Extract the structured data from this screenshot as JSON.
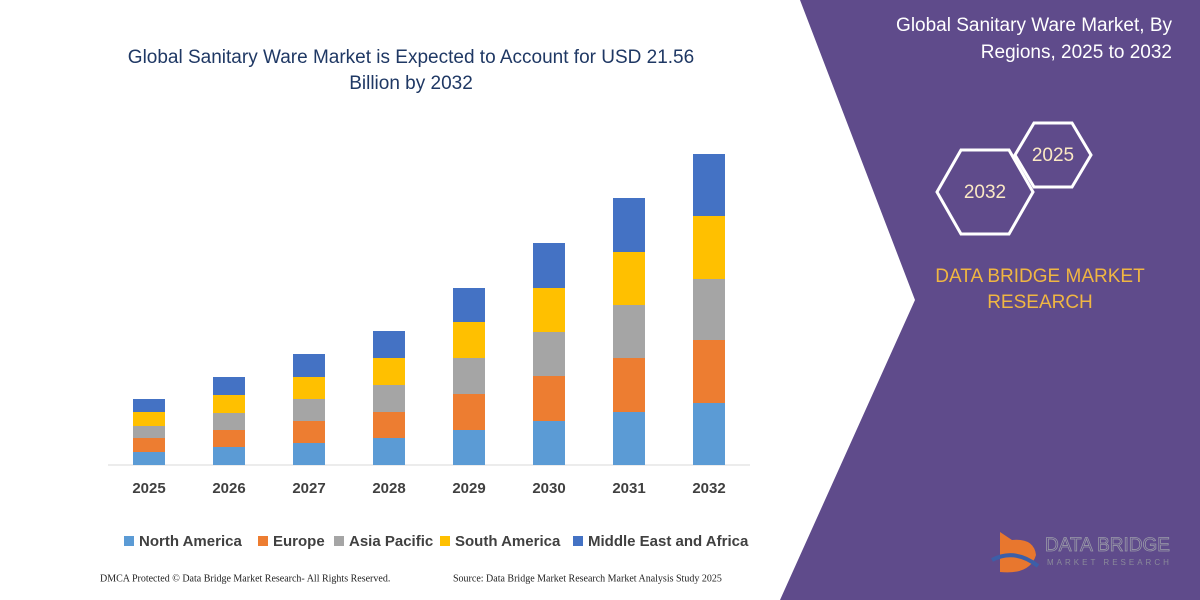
{
  "chart_data": {
    "type": "stacked_bar",
    "title": "Global Sanitary Ware Market is Expected to Account for USD 21.56 Billion by 2032",
    "categories": [
      "2025",
      "2026",
      "2027",
      "2028",
      "2029",
      "2030",
      "2031",
      "2032"
    ],
    "series": [
      {
        "name": "North America",
        "color": "#5b9bd5",
        "values": [
          13,
          18,
          22,
          27,
          35,
          44,
          53,
          62
        ]
      },
      {
        "name": "Europe",
        "color": "#ed7d31",
        "values": [
          14,
          17,
          22,
          26,
          36,
          45,
          54,
          63
        ]
      },
      {
        "name": "Asia Pacific",
        "color": "#a5a5a5",
        "values": [
          12,
          17,
          22,
          27,
          36,
          44,
          53,
          61
        ]
      },
      {
        "name": "South America",
        "color": "#ffc000",
        "values": [
          14,
          18,
          22,
          27,
          36,
          44,
          53,
          63
        ]
      },
      {
        "name": "Middle East and Africa",
        "color": "#4472c4",
        "values": [
          13,
          18,
          23,
          27,
          34,
          45,
          54,
          62
        ]
      }
    ],
    "ylim": [
      0,
      320
    ]
  },
  "panel": {
    "title": "Global Sanitary Ware Market, By Regions, 2025 to 2032",
    "hexagons": [
      "2032",
      "2025"
    ],
    "brand": [
      "DATA BRIDGE MARKET",
      "RESEARCH"
    ],
    "logo": [
      "DATA BRIDGE",
      "MARKET RESEARCH"
    ]
  },
  "footer": {
    "left": "DMCA Protected © Data Bridge Market Research-  All Rights Reserved.",
    "right": "Source: Data Bridge Market Research  Market Analysis Study 2025"
  }
}
